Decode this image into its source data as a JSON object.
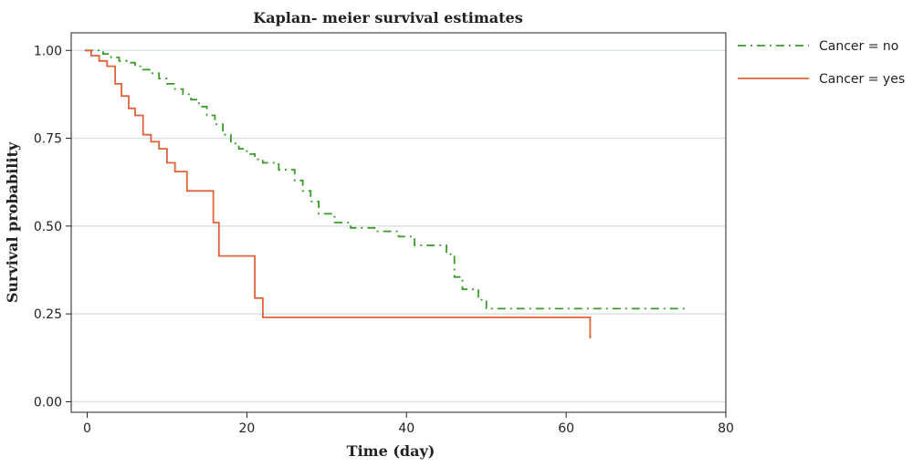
{
  "chart_data": {
    "type": "line",
    "subtype": "kaplan-meier step",
    "title": "Kaplan- meier survival estimates",
    "xlabel": "Time (day)",
    "ylabel": "Survival probability",
    "xlim": [
      -2,
      80
    ],
    "ylim": [
      -0.03,
      1.05
    ],
    "xticks": [
      0,
      20,
      40,
      60,
      80
    ],
    "xtick_labels": [
      "0",
      "20",
      "40",
      "60",
      "80"
    ],
    "yticks": [
      0.0,
      0.25,
      0.5,
      0.75,
      1.0
    ],
    "ytick_labels": [
      "0.00",
      "0.25",
      "0.50",
      "0.75",
      "1.00"
    ],
    "grid": "horizontal",
    "legend_position": "right",
    "series": [
      {
        "name": "Cancer = no",
        "color": "#3a9a2a",
        "style": "dash-dot",
        "x": [
          -0.3,
          2,
          3,
          4,
          5,
          6,
          7,
          8,
          9,
          10,
          11,
          12,
          13,
          14,
          15,
          16,
          17,
          18,
          19,
          20,
          21,
          22,
          24,
          26,
          27,
          28,
          29,
          31,
          33,
          36,
          39,
          41,
          45,
          46,
          47,
          49,
          50,
          75
        ],
        "y": [
          1.0,
          0.99,
          0.98,
          0.97,
          0.965,
          0.955,
          0.945,
          0.935,
          0.92,
          0.905,
          0.89,
          0.875,
          0.86,
          0.84,
          0.815,
          0.79,
          0.76,
          0.735,
          0.72,
          0.705,
          0.69,
          0.68,
          0.66,
          0.63,
          0.6,
          0.57,
          0.535,
          0.51,
          0.495,
          0.485,
          0.47,
          0.445,
          0.42,
          0.355,
          0.32,
          0.29,
          0.265,
          0.265
        ]
      },
      {
        "name": "Cancer = yes",
        "color": "#e0623a",
        "style": "solid",
        "x": [
          -0.3,
          0.5,
          1.5,
          2.5,
          3.5,
          4.3,
          5.2,
          6.0,
          7.0,
          8.0,
          9.0,
          10.0,
          11.0,
          12.5,
          15.0,
          15.8,
          16.5,
          19.5,
          21.0,
          22.0,
          63
        ],
        "y": [
          1.0,
          0.985,
          0.97,
          0.955,
          0.905,
          0.87,
          0.835,
          0.815,
          0.76,
          0.74,
          0.72,
          0.68,
          0.655,
          0.6,
          0.6,
          0.51,
          0.415,
          0.415,
          0.295,
          0.24,
          0.18
        ]
      }
    ]
  }
}
